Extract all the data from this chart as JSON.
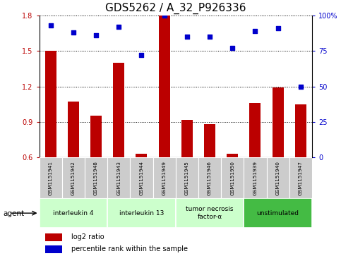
{
  "title": "GDS5262 / A_32_P926336",
  "samples": [
    "GSM1151941",
    "GSM1151942",
    "GSM1151948",
    "GSM1151943",
    "GSM1151944",
    "GSM1151949",
    "GSM1151945",
    "GSM1151946",
    "GSM1151950",
    "GSM1151939",
    "GSM1151940",
    "GSM1151947"
  ],
  "log2_ratio": [
    1.5,
    1.07,
    0.95,
    1.4,
    0.63,
    1.8,
    0.92,
    0.88,
    0.63,
    1.06,
    1.19,
    1.05
  ],
  "percentile_rank": [
    93,
    88,
    86,
    92,
    72,
    100,
    85,
    85,
    77,
    89,
    91,
    50
  ],
  "ylim": [
    0.6,
    1.8
  ],
  "y_ticks": [
    0.6,
    0.9,
    1.2,
    1.5,
    1.8
  ],
  "right_yticks": [
    0,
    25,
    50,
    75,
    100
  ],
  "right_yticklabels": [
    "0",
    "25",
    "50",
    "75",
    "100%"
  ],
  "bar_color": "#bb0000",
  "scatter_color": "#0000cc",
  "agent_groups": [
    {
      "label": "interleukin 4",
      "start": 0,
      "end": 3,
      "color": "#ccffcc"
    },
    {
      "label": "interleukin 13",
      "start": 3,
      "end": 6,
      "color": "#ccffcc"
    },
    {
      "label": "tumor necrosis\nfactor-α",
      "start": 6,
      "end": 9,
      "color": "#ccffcc"
    },
    {
      "label": "unstimulated",
      "start": 9,
      "end": 12,
      "color": "#44bb44"
    }
  ],
  "agent_label": "agent",
  "legend_log2": "log2 ratio",
  "legend_pct": "percentile rank within the sample",
  "bar_width": 0.5,
  "sample_box_color": "#cccccc",
  "dotted_line_color": "#000000",
  "background_color": "#ffffff",
  "title_fontsize": 11,
  "tick_fontsize": 7,
  "label_fontsize": 6
}
